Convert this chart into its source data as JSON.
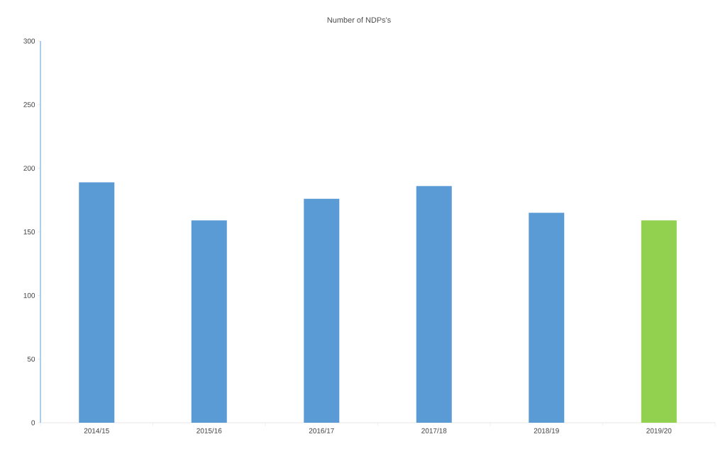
{
  "chart_data": {
    "type": "bar",
    "title": "Number of NDPs's",
    "categories": [
      "2014/15",
      "2015/16",
      "2016/17",
      "2017/18",
      "2018/19",
      "2019/20"
    ],
    "values": [
      189,
      159,
      176,
      186,
      165,
      159
    ],
    "colors": [
      "#5b9bd5",
      "#5b9bd5",
      "#5b9bd5",
      "#5b9bd5",
      "#5b9bd5",
      "#92d050"
    ],
    "ylim": [
      0,
      300
    ],
    "yticks": [
      0,
      50,
      100,
      150,
      200,
      250,
      300
    ],
    "grid": false
  }
}
